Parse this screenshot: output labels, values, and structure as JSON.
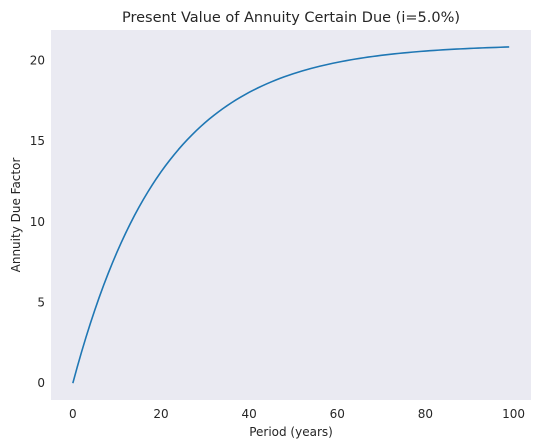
{
  "chart_data": {
    "type": "line",
    "title": "Present Value of Annuity Certain Due (i=5.0%)",
    "xlabel": "Period (years)",
    "ylabel": "Annuity Due Factor",
    "xlim": [
      -4.95,
      103.95
    ],
    "ylim": [
      -1.04,
      21.88
    ],
    "grid": false,
    "x_ticks": [
      0,
      20,
      40,
      60,
      80,
      100
    ],
    "y_ticks": [
      0,
      5,
      10,
      15,
      20
    ],
    "colors": {
      "plot_background": "#eaeaf2",
      "line": "#1f77b4"
    },
    "series": [
      {
        "interest_rate": 0.05,
        "x": [
          0,
          1,
          2,
          3,
          4,
          5,
          6,
          7,
          8,
          9,
          10,
          11,
          12,
          13,
          14,
          15,
          16,
          17,
          18,
          19,
          20,
          21,
          22,
          23,
          24,
          25,
          26,
          27,
          28,
          29,
          30,
          31,
          32,
          33,
          34,
          35,
          36,
          37,
          38,
          39,
          40,
          41,
          42,
          43,
          44,
          45,
          46,
          47,
          48,
          49,
          50,
          51,
          52,
          53,
          54,
          55,
          56,
          57,
          58,
          59,
          60,
          61,
          62,
          63,
          64,
          65,
          66,
          67,
          68,
          69,
          70,
          71,
          72,
          73,
          74,
          75,
          76,
          77,
          78,
          79,
          80,
          81,
          82,
          83,
          84,
          85,
          86,
          87,
          88,
          89,
          90,
          91,
          92,
          93,
          94,
          95,
          96,
          97,
          98,
          99
        ],
        "y": [
          0.0,
          1.0,
          1.952,
          2.859,
          3.723,
          4.546,
          5.329,
          6.076,
          6.786,
          7.463,
          8.108,
          8.722,
          9.306,
          9.863,
          10.394,
          10.899,
          11.38,
          11.838,
          12.274,
          12.69,
          13.085,
          13.462,
          13.821,
          14.163,
          14.488,
          14.799,
          15.094,
          15.375,
          15.643,
          15.898,
          16.141,
          16.372,
          16.593,
          16.803,
          17.003,
          17.193,
          17.374,
          17.547,
          17.711,
          17.868,
          18.017,
          18.159,
          18.294,
          18.423,
          18.546,
          18.663,
          18.774,
          18.88,
          18.981,
          19.077,
          19.169,
          19.256,
          19.339,
          19.418,
          19.493,
          19.565,
          19.633,
          19.698,
          19.76,
          19.819,
          19.876,
          19.929,
          19.98,
          20.029,
          20.075,
          20.119,
          20.161,
          20.201,
          20.239,
          20.275,
          20.31,
          20.343,
          20.374,
          20.404,
          20.432,
          20.459,
          20.485,
          20.509,
          20.532,
          20.555,
          20.576,
          20.596,
          20.615,
          20.633,
          20.65,
          20.667,
          20.682,
          20.697,
          20.711,
          20.725,
          20.738,
          20.75,
          20.762,
          20.773,
          20.784,
          20.794,
          20.803,
          20.812,
          20.821,
          20.83
        ]
      }
    ]
  }
}
